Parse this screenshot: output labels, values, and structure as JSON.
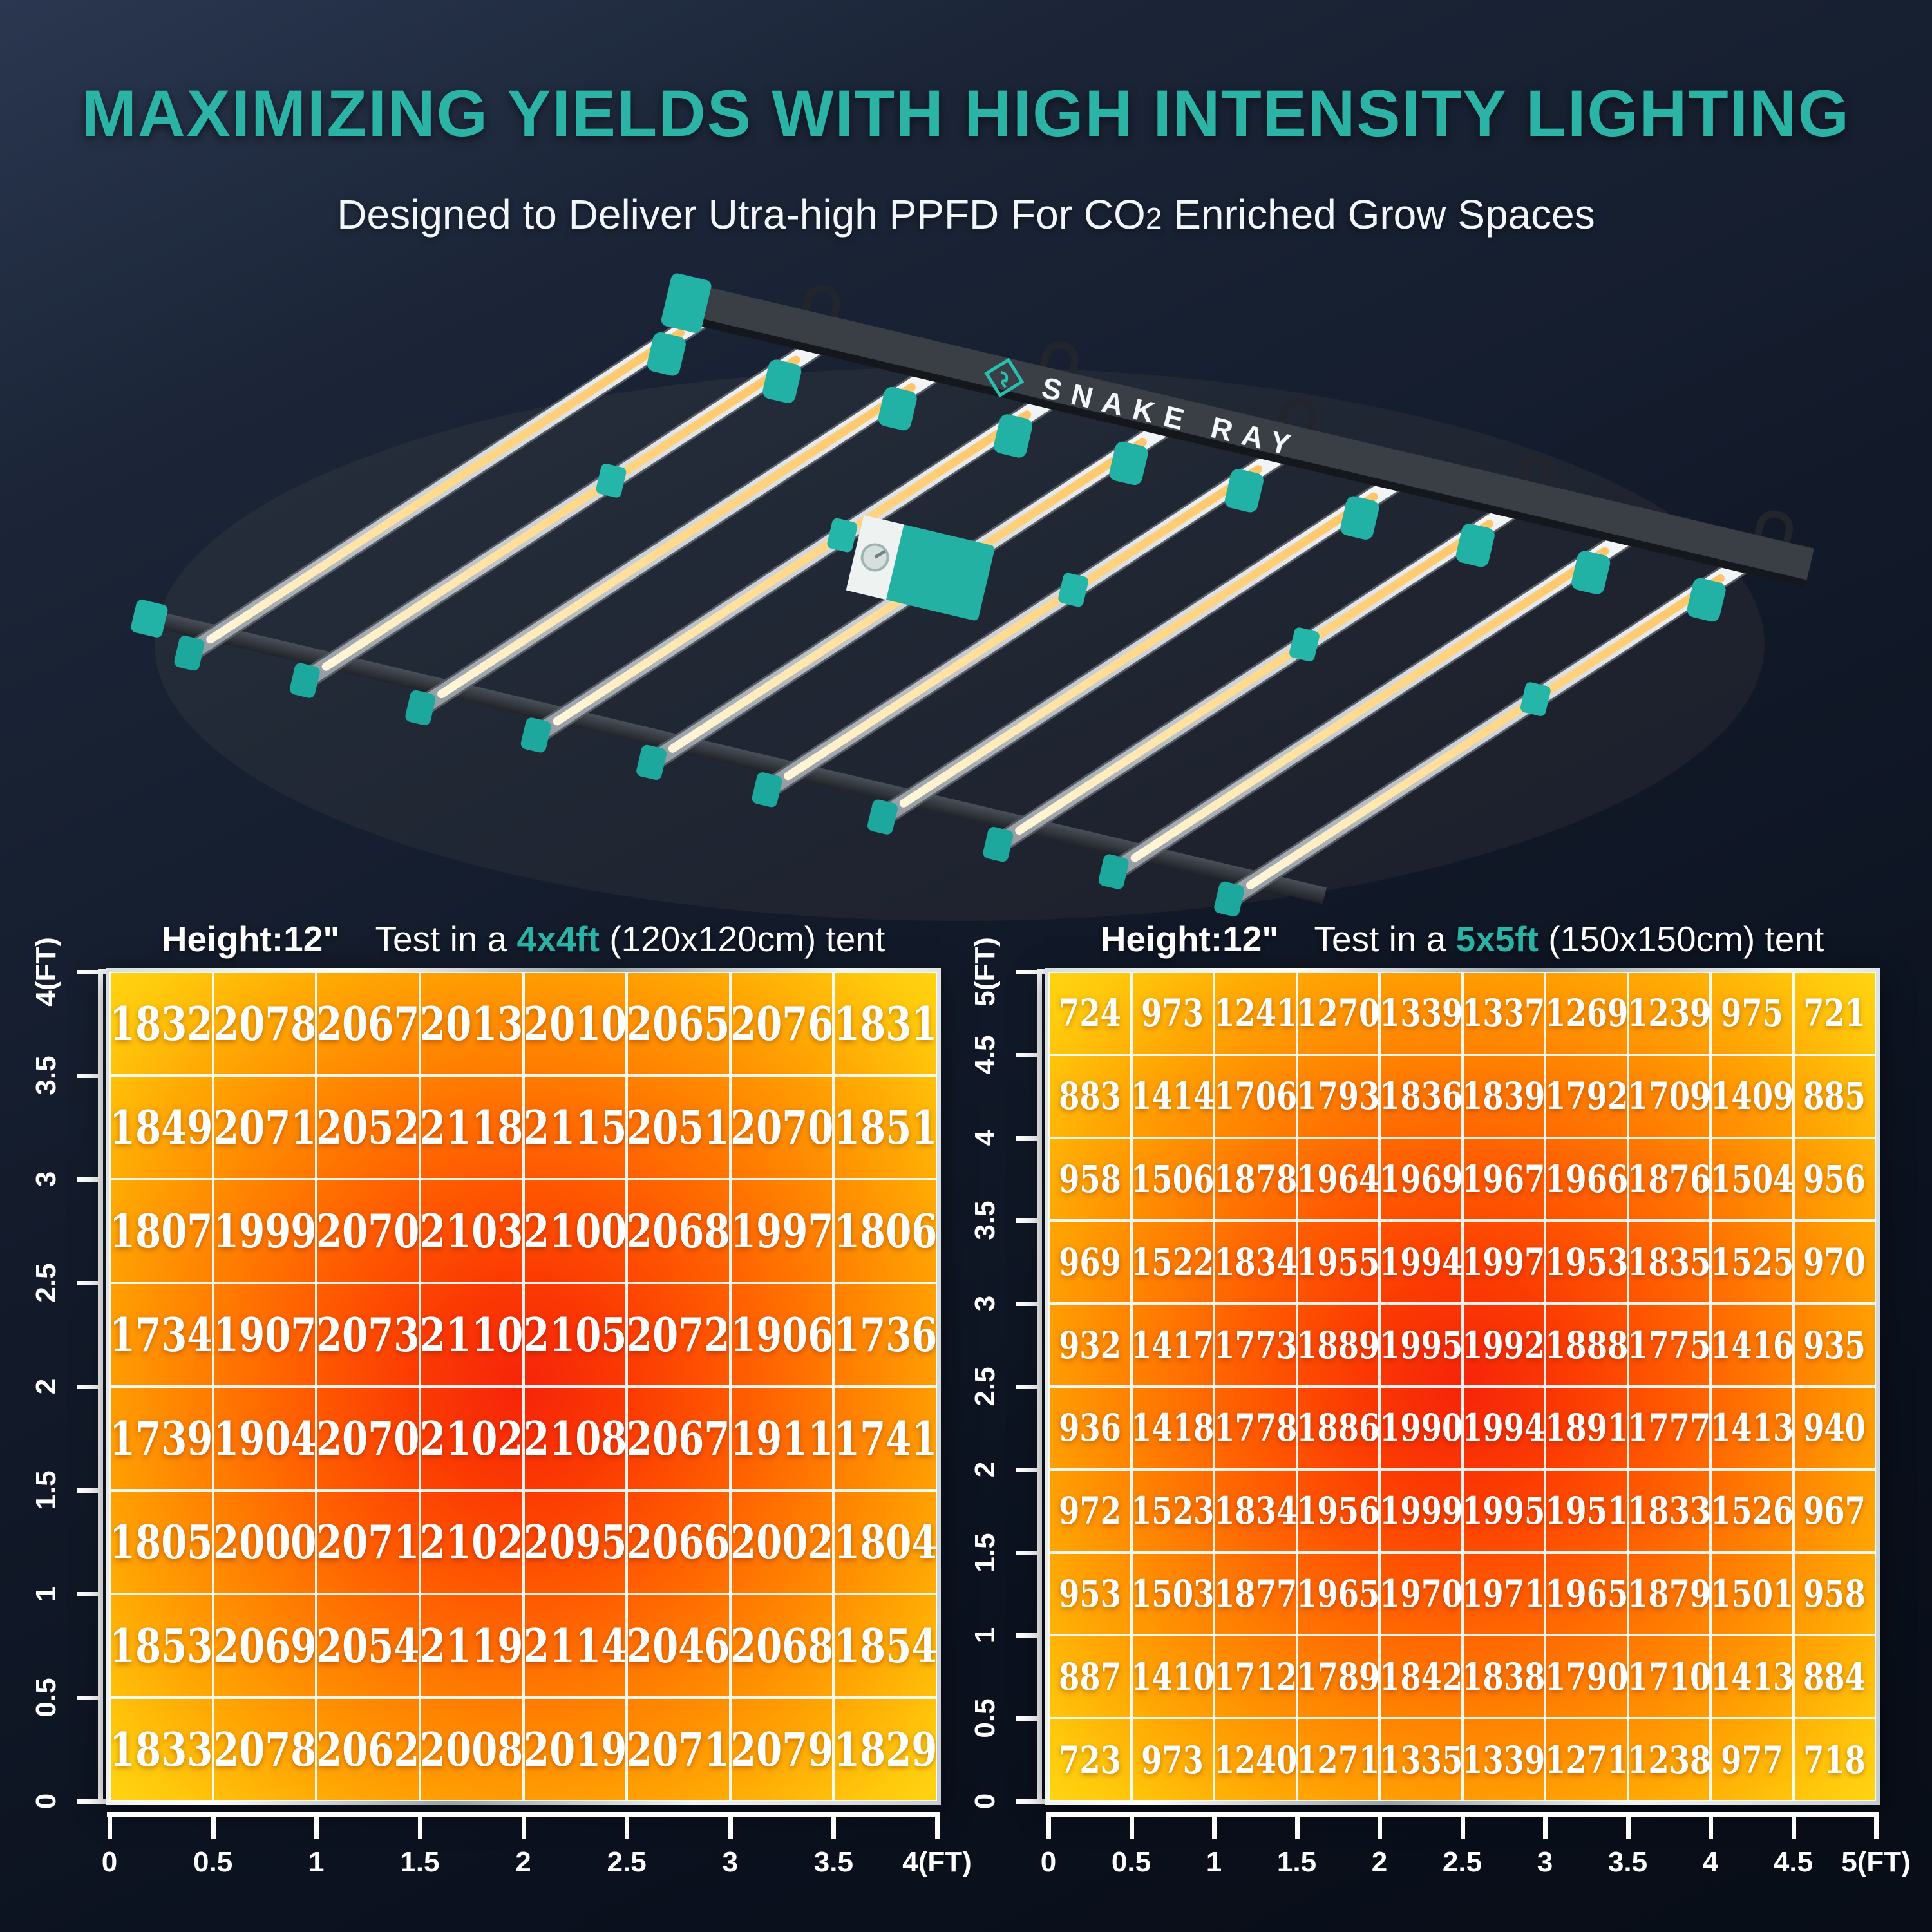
{
  "title": "MAXIMIZING YIELDS WITH HIGH INTENSITY LIGHTING",
  "subtitle": {
    "pre": "Designed to Deliver Utra-high PPFD For CO",
    "sub": "2",
    "post": " Enriched Grow Spaces"
  },
  "fixture": {
    "brand": "SNAKE RAY",
    "logo": "snake-diamond-icon"
  },
  "colors": {
    "accent": "#2BB4A6",
    "heat_center": "#F6240A",
    "heat_mid": "#FF8400",
    "heat_corner": "#FFD411",
    "axis": "#FFFFFF",
    "background_top": "#27334A",
    "background_bottom": "#080D17"
  },
  "chart_data": [
    {
      "type": "heatmap",
      "title": "PPFD distribution, height 12 in, 4x4 ft (120x120 cm) tent",
      "header": {
        "height": "Height:12\"",
        "pre": "Test in a ",
        "tent": "4x4ft",
        "post": " (120x120cm) tent"
      },
      "unit": "FT",
      "x_ticks": [
        "0",
        "0.5",
        "1",
        "1.5",
        "2",
        "2.5",
        "3",
        "3.5",
        "4(FT)"
      ],
      "y_ticks": [
        "4(FT)",
        "3.5",
        "3",
        "2.5",
        "2",
        "1.5",
        "1",
        "0.5",
        "0"
      ],
      "values": [
        [
          1832,
          2078,
          2067,
          2013,
          2010,
          2065,
          2076,
          1831
        ],
        [
          1849,
          2071,
          2052,
          2118,
          2115,
          2051,
          2070,
          1851
        ],
        [
          1807,
          1999,
          2070,
          2103,
          2100,
          2068,
          1997,
          1806
        ],
        [
          1734,
          1907,
          2073,
          2110,
          2105,
          2072,
          1906,
          1736
        ],
        [
          1739,
          1904,
          2070,
          2102,
          2108,
          2067,
          1911,
          1741
        ],
        [
          1805,
          2000,
          2071,
          2102,
          2095,
          2066,
          2002,
          1804
        ],
        [
          1853,
          2069,
          2054,
          2119,
          2114,
          2046,
          2068,
          1854
        ],
        [
          1833,
          2078,
          2062,
          2008,
          2019,
          2071,
          2079,
          1829
        ]
      ]
    },
    {
      "type": "heatmap",
      "title": "PPFD distribution, height 12 in, 5x5 ft (150x150 cm) tent",
      "header": {
        "height": "Height:12\"",
        "pre": "Test in a ",
        "tent": "5x5ft",
        "post": " (150x150cm) tent"
      },
      "unit": "FT",
      "x_ticks": [
        "0",
        "0.5",
        "1",
        "1.5",
        "2",
        "2.5",
        "3",
        "3.5",
        "4",
        "4.5",
        "5(FT)"
      ],
      "y_ticks": [
        "5(FT)",
        "4.5",
        "4",
        "3.5",
        "3",
        "2.5",
        "2",
        "1.5",
        "1",
        "0.5",
        "0"
      ],
      "values": [
        [
          724,
          973,
          1241,
          1270,
          1339,
          1337,
          1269,
          1239,
          975,
          721
        ],
        [
          883,
          1414,
          1706,
          1793,
          1836,
          1839,
          1792,
          1709,
          1409,
          885
        ],
        [
          958,
          1506,
          1878,
          1964,
          1969,
          1967,
          1966,
          1876,
          1504,
          956
        ],
        [
          969,
          1522,
          1834,
          1955,
          1994,
          1997,
          1953,
          1835,
          1525,
          970
        ],
        [
          932,
          1417,
          1773,
          1889,
          1995,
          1992,
          1888,
          1775,
          1416,
          935
        ],
        [
          936,
          1418,
          1778,
          1886,
          1990,
          1994,
          1891,
          1777,
          1413,
          940
        ],
        [
          972,
          1523,
          1834,
          1956,
          1999,
          1995,
          1951,
          1833,
          1526,
          967
        ],
        [
          953,
          1503,
          1877,
          1965,
          1970,
          1971,
          1965,
          1879,
          1501,
          958
        ],
        [
          887,
          1410,
          1712,
          1789,
          1842,
          1838,
          1790,
          1710,
          1413,
          884
        ],
        [
          723,
          973,
          1240,
          1271,
          1335,
          1339,
          1271,
          1238,
          977,
          718
        ]
      ]
    }
  ]
}
